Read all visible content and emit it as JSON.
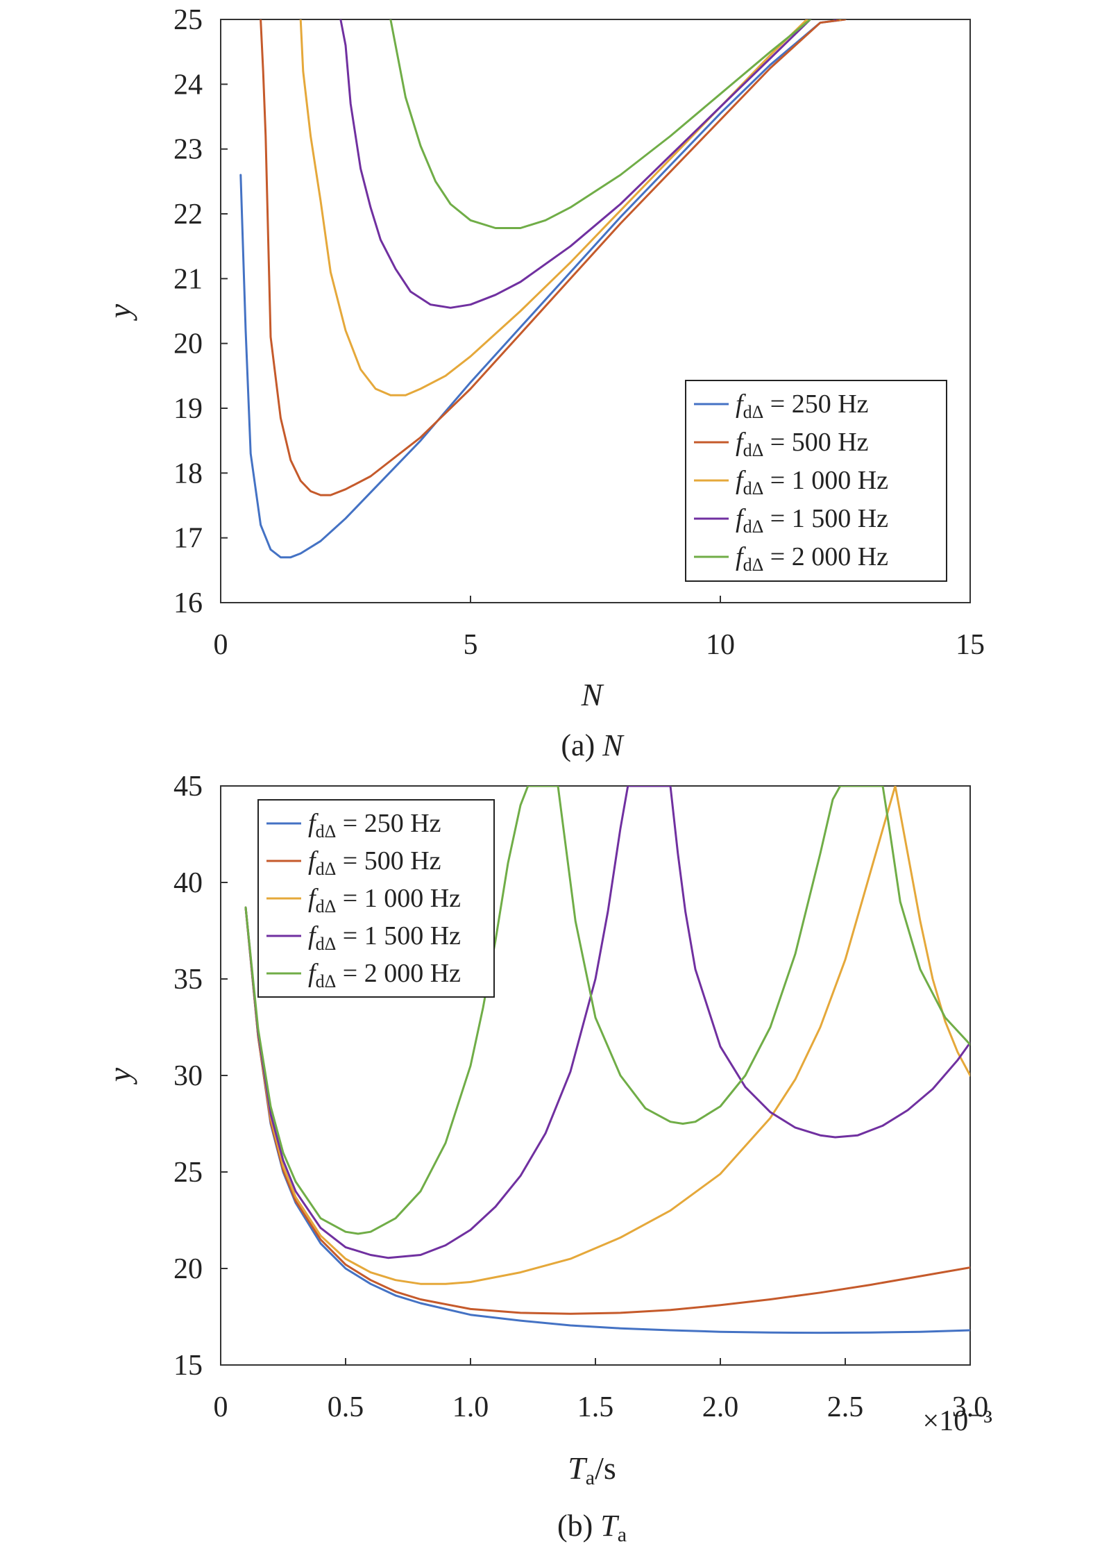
{
  "figure": {
    "captions": [
      {
        "prefix": "(a) ",
        "var": "N",
        "sub": ""
      },
      {
        "prefix": "(b) ",
        "var": "T",
        "sub": "a"
      }
    ]
  },
  "colors": {
    "blue": "#4472c4",
    "red": "#c55a2b",
    "yellow": "#e5a83a",
    "purple": "#7030a0",
    "green": "#70ad47",
    "axis": "#333333"
  },
  "chart_data": [
    {
      "type": "line",
      "title": "",
      "caption": "(a) N",
      "xlabel": "N",
      "ylabel": "y",
      "xlim": [
        0,
        15
      ],
      "ylim": [
        16,
        25
      ],
      "xticks": [
        "0",
        "5",
        "10",
        "15"
      ],
      "yticks": [
        "16",
        "17",
        "18",
        "19",
        "20",
        "21",
        "22",
        "23",
        "24",
        "25"
      ],
      "legend_position": "bottom-right",
      "series": [
        {
          "name": "f_dΔ = 250 Hz",
          "legend_sym": "f",
          "legend_sub": "dΔ",
          "legend_val": " = 250 Hz",
          "color": "#4472c4",
          "x": [
            0.4,
            0.5,
            0.6,
            0.8,
            1.0,
            1.2,
            1.4,
            1.6,
            2.0,
            2.5,
            3,
            4,
            5,
            6,
            7,
            8,
            9,
            10,
            11,
            12,
            12.5
          ],
          "y": [
            22.6,
            20.2,
            18.3,
            17.2,
            16.82,
            16.7,
            16.7,
            16.76,
            16.95,
            17.3,
            17.7,
            18.5,
            19.4,
            20.25,
            21.1,
            21.95,
            22.75,
            23.55,
            24.3,
            24.95,
            25.0
          ]
        },
        {
          "name": "f_dΔ = 500 Hz",
          "legend_sym": "f",
          "legend_sub": "dΔ",
          "legend_val": " = 500 Hz",
          "color": "#c55a2b",
          "x": [
            0.8,
            0.85,
            0.9,
            1.0,
            1.2,
            1.4,
            1.6,
            1.8,
            2.0,
            2.2,
            2.5,
            3,
            4,
            5,
            6,
            7,
            8,
            9,
            10,
            11,
            12,
            12.5
          ],
          "y": [
            25.0,
            24.2,
            23.2,
            20.1,
            18.85,
            18.2,
            17.88,
            17.72,
            17.66,
            17.66,
            17.75,
            17.95,
            18.55,
            19.3,
            20.15,
            21.0,
            21.85,
            22.65,
            23.45,
            24.25,
            24.95,
            25.0
          ]
        },
        {
          "name": "f_dΔ = 1 000 Hz",
          "legend_sym": "f",
          "legend_sub": "dΔ",
          "legend_val": " = 1 000 Hz",
          "color": "#e5a83a",
          "x": [
            1.6,
            1.65,
            1.8,
            2.0,
            2.2,
            2.5,
            2.8,
            3.1,
            3.4,
            3.7,
            4.0,
            4.5,
            5,
            6,
            7,
            8,
            9,
            10,
            11,
            12,
            12.4
          ],
          "y": [
            25.0,
            24.2,
            23.2,
            22.2,
            21.1,
            20.2,
            19.6,
            19.3,
            19.2,
            19.2,
            19.3,
            19.5,
            19.8,
            20.5,
            21.25,
            22.05,
            22.85,
            23.65,
            24.45,
            25.2,
            25.0
          ]
        },
        {
          "name": "f_dΔ = 1 500 Hz",
          "legend_sym": "f",
          "legend_sub": "dΔ",
          "legend_val": " = 1 500 Hz",
          "color": "#7030a0",
          "x": [
            2.4,
            2.5,
            2.6,
            2.8,
            3.0,
            3.2,
            3.5,
            3.8,
            4.2,
            4.6,
            5.0,
            5.5,
            6,
            7,
            8,
            9,
            10,
            11,
            12,
            12.3
          ],
          "y": [
            25.0,
            24.6,
            23.7,
            22.7,
            22.1,
            21.6,
            21.15,
            20.8,
            20.6,
            20.55,
            20.6,
            20.75,
            20.95,
            21.5,
            22.15,
            22.9,
            23.65,
            24.4,
            25.15,
            25.0
          ]
        },
        {
          "name": "f_dΔ = 2 000 Hz",
          "legend_sym": "f",
          "legend_sub": "dΔ",
          "legend_val": " = 2 000 Hz",
          "color": "#70ad47",
          "x": [
            3.4,
            3.5,
            3.7,
            4.0,
            4.3,
            4.6,
            5.0,
            5.5,
            6.0,
            6.5,
            7,
            8,
            9,
            10,
            11,
            11.8
          ],
          "y": [
            25.0,
            24.6,
            23.8,
            23.05,
            22.5,
            22.15,
            21.9,
            21.78,
            21.78,
            21.9,
            22.1,
            22.6,
            23.2,
            23.85,
            24.5,
            25.0
          ]
        }
      ]
    },
    {
      "type": "line",
      "title": "",
      "caption": "(b) Ta",
      "xlabel": "Ta/s",
      "ylabel": "y",
      "x_multiplier": "×10⁻³",
      "xlim": [
        0,
        3.0
      ],
      "ylim": [
        15,
        45
      ],
      "xticks": [
        "0",
        "0.5",
        "1.0",
        "1.5",
        "2.0",
        "2.5",
        "3.0"
      ],
      "yticks": [
        "15",
        "20",
        "25",
        "30",
        "35",
        "40",
        "45"
      ],
      "legend_position": "top-left",
      "series": [
        {
          "name": "f_dΔ = 250 Hz",
          "legend_sym": "f",
          "legend_sub": "dΔ",
          "legend_val": " = 250 Hz",
          "color": "#4472c4",
          "x": [
            0.1,
            0.15,
            0.2,
            0.25,
            0.3,
            0.4,
            0.5,
            0.6,
            0.7,
            0.8,
            1.0,
            1.2,
            1.4,
            1.6,
            1.8,
            2.0,
            2.2,
            2.4,
            2.6,
            2.8,
            3.0
          ],
          "y": [
            38.7,
            32.0,
            27.5,
            25.0,
            23.4,
            21.3,
            20.0,
            19.2,
            18.6,
            18.2,
            17.6,
            17.3,
            17.05,
            16.9,
            16.8,
            16.72,
            16.68,
            16.67,
            16.68,
            16.72,
            16.8
          ]
        },
        {
          "name": "f_dΔ = 500 Hz",
          "legend_sym": "f",
          "legend_sub": "dΔ",
          "legend_val": " = 500 Hz",
          "color": "#c55a2b",
          "x": [
            0.1,
            0.15,
            0.2,
            0.25,
            0.3,
            0.4,
            0.5,
            0.6,
            0.7,
            0.8,
            1.0,
            1.2,
            1.4,
            1.6,
            1.8,
            2.0,
            2.2,
            2.4,
            2.6,
            2.8,
            3.0
          ],
          "y": [
            38.7,
            32.0,
            27.6,
            25.1,
            23.5,
            21.5,
            20.2,
            19.4,
            18.8,
            18.4,
            17.9,
            17.7,
            17.65,
            17.7,
            17.85,
            18.1,
            18.4,
            18.75,
            19.15,
            19.6,
            20.05
          ]
        },
        {
          "name": "f_dΔ = 1 000 Hz",
          "legend_sym": "f",
          "legend_sub": "dΔ",
          "legend_val": " = 1 000 Hz",
          "color": "#e5a83a",
          "x": [
            0.1,
            0.15,
            0.2,
            0.25,
            0.3,
            0.4,
            0.5,
            0.6,
            0.7,
            0.8,
            0.9,
            1.0,
            1.2,
            1.4,
            1.6,
            1.8,
            2.0,
            2.2,
            2.3,
            2.4,
            2.5,
            2.6,
            2.7,
            2.8,
            2.85,
            2.9,
            2.95,
            3.0
          ],
          "y": [
            38.7,
            32.1,
            27.8,
            25.3,
            23.7,
            21.7,
            20.5,
            19.8,
            19.4,
            19.2,
            19.2,
            19.3,
            19.8,
            20.5,
            21.6,
            23.0,
            24.9,
            27.8,
            29.8,
            32.5,
            36.0,
            40.5,
            45.0,
            38.0,
            35.0,
            32.8,
            31.2,
            30.0
          ]
        },
        {
          "name": "f_dΔ = 1 500 Hz",
          "legend_sym": "f",
          "legend_sub": "dΔ",
          "legend_val": " = 1 500 Hz",
          "color": "#7030a0",
          "x": [
            0.1,
            0.15,
            0.2,
            0.25,
            0.3,
            0.4,
            0.5,
            0.6,
            0.67,
            0.8,
            0.9,
            1.0,
            1.1,
            1.2,
            1.3,
            1.4,
            1.5,
            1.55,
            1.6,
            1.63,
            1.8,
            1.83,
            1.86,
            1.9,
            2.0,
            2.1,
            2.2,
            2.3,
            2.4,
            2.46,
            2.55,
            2.65,
            2.75,
            2.85,
            2.95,
            3.0
          ],
          "y": [
            38.7,
            32.2,
            28.0,
            25.6,
            24.0,
            22.1,
            21.1,
            20.7,
            20.55,
            20.7,
            21.2,
            22.0,
            23.2,
            24.8,
            27.0,
            30.2,
            35.0,
            38.5,
            42.8,
            45.0,
            45.0,
            41.5,
            38.5,
            35.5,
            31.5,
            29.4,
            28.1,
            27.3,
            26.9,
            26.8,
            26.9,
            27.4,
            28.2,
            29.3,
            30.8,
            31.7
          ]
        },
        {
          "name": "f_dΔ = 2 000 Hz",
          "legend_sym": "f",
          "legend_sub": "dΔ",
          "legend_val": " = 2 000 Hz",
          "color": "#70ad47",
          "x": [
            0.1,
            0.15,
            0.2,
            0.25,
            0.3,
            0.4,
            0.5,
            0.55,
            0.6,
            0.7,
            0.8,
            0.9,
            1.0,
            1.05,
            1.1,
            1.15,
            1.2,
            1.23,
            1.35,
            1.38,
            1.42,
            1.5,
            1.6,
            1.7,
            1.8,
            1.85,
            1.9,
            2.0,
            2.1,
            2.2,
            2.3,
            2.4,
            2.45,
            2.48,
            2.65,
            2.68,
            2.72,
            2.8,
            2.9,
            3.0
          ],
          "y": [
            38.7,
            32.4,
            28.4,
            26.0,
            24.5,
            22.6,
            21.9,
            21.8,
            21.9,
            22.6,
            24.0,
            26.5,
            30.5,
            33.5,
            37.0,
            41.0,
            44.0,
            45.0,
            45.0,
            42.0,
            38.0,
            33.0,
            30.0,
            28.3,
            27.6,
            27.5,
            27.6,
            28.4,
            30.0,
            32.5,
            36.3,
            41.5,
            44.3,
            45.0,
            45.0,
            42.5,
            39.0,
            35.5,
            33.0,
            31.6
          ]
        }
      ]
    }
  ]
}
